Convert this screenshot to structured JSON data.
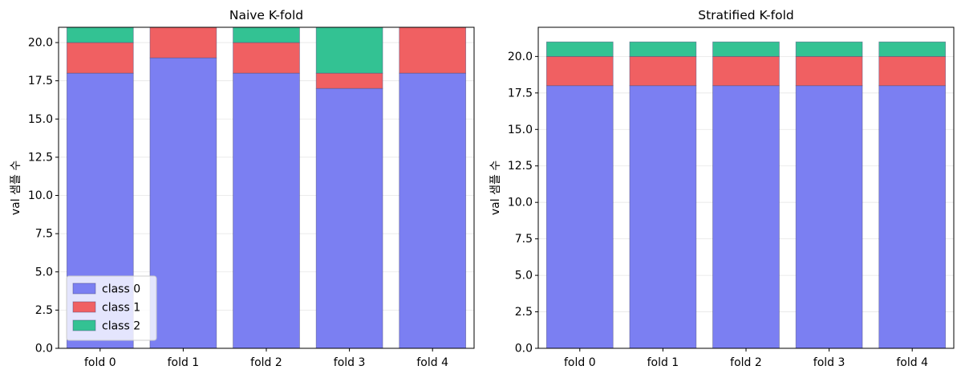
{
  "chart_data": [
    {
      "type": "bar",
      "stacked": true,
      "title": "Naive K-fold",
      "xlabel": "",
      "ylabel": "val 샘플 수",
      "categories": [
        "fold 0",
        "fold 1",
        "fold 2",
        "fold 3",
        "fold 4"
      ],
      "series": [
        {
          "name": "class 0",
          "values": [
            18,
            19,
            18,
            17,
            18
          ],
          "color": "#7b7ff2"
        },
        {
          "name": "class 1",
          "values": [
            2,
            2,
            2,
            1,
            3
          ],
          "color": "#f06062"
        },
        {
          "name": "class 2",
          "values": [
            1,
            0,
            1,
            3,
            0
          ],
          "color": "#33c293"
        }
      ],
      "ylim": [
        0,
        21
      ],
      "yticks": [
        0.0,
        2.5,
        5.0,
        7.5,
        10.0,
        12.5,
        15.0,
        17.5,
        20.0
      ],
      "grid": true,
      "legend": "lower left"
    },
    {
      "type": "bar",
      "stacked": true,
      "title": "Stratified K-fold",
      "xlabel": "",
      "ylabel": "val 샘플 수",
      "categories": [
        "fold 0",
        "fold 1",
        "fold 2",
        "fold 3",
        "fold 4"
      ],
      "series": [
        {
          "name": "class 0",
          "values": [
            18,
            18,
            18,
            18,
            18
          ],
          "color": "#7b7ff2"
        },
        {
          "name": "class 1",
          "values": [
            2,
            2,
            2,
            2,
            2
          ],
          "color": "#f06062"
        },
        {
          "name": "class 2",
          "values": [
            1,
            1,
            1,
            1,
            1
          ],
          "color": "#33c293"
        }
      ],
      "ylim": [
        0,
        22
      ],
      "yticks": [
        0.0,
        2.5,
        5.0,
        7.5,
        10.0,
        12.5,
        15.0,
        17.5,
        20.0
      ],
      "grid": true,
      "legend": "none"
    }
  ]
}
